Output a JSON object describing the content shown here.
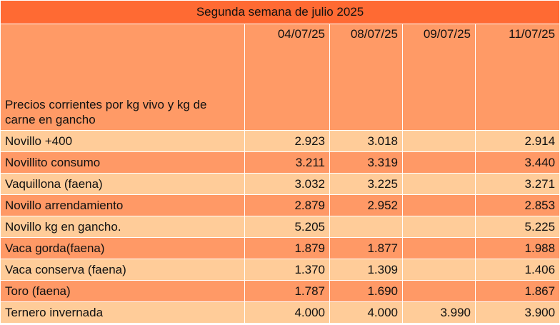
{
  "title": "Segunda semana de julio 2025",
  "description": "Precios corrientes  por kg vivo y kg de carne en gancho",
  "dates": [
    "04/07/25",
    "08/07/25",
    "09/07/25",
    "11/07/25"
  ],
  "rows": [
    {
      "label": "Novillo +400",
      "values": [
        "2.923",
        "3.018",
        "",
        "2.914"
      ]
    },
    {
      "label": "Novillito consumo",
      "values": [
        "3.211",
        "3.319",
        "",
        "3.440"
      ]
    },
    {
      "label": "Vaquillona (faena)",
      "values": [
        "3.032",
        "3.225",
        "",
        "3.271"
      ]
    },
    {
      "label": "Novillo arrendamiento",
      "values": [
        "2.879",
        "2.952",
        "",
        "2.853"
      ]
    },
    {
      "label": "Novillo kg en gancho.",
      "values": [
        "5.205",
        "",
        "",
        "5.225"
      ]
    },
    {
      "label": "Vaca gorda(faena)",
      "values": [
        "1.879",
        "1.877",
        "",
        "1.988"
      ]
    },
    {
      "label": "Vaca conserva (faena)",
      "values": [
        "1.370",
        "1.309",
        "",
        "1.406"
      ]
    },
    {
      "label": "Toro (faena)",
      "values": [
        "1.787",
        "1.690",
        "",
        "1.867"
      ]
    },
    {
      "label": "Ternero invernada",
      "values": [
        "4.000",
        "4.000",
        "3.990",
        "3.900"
      ]
    }
  ],
  "colors": {
    "title_bg": "#ff6a33",
    "header_bg": "#ff9a66",
    "row_light": "#ffcc99",
    "row_dark": "#ff9966"
  }
}
